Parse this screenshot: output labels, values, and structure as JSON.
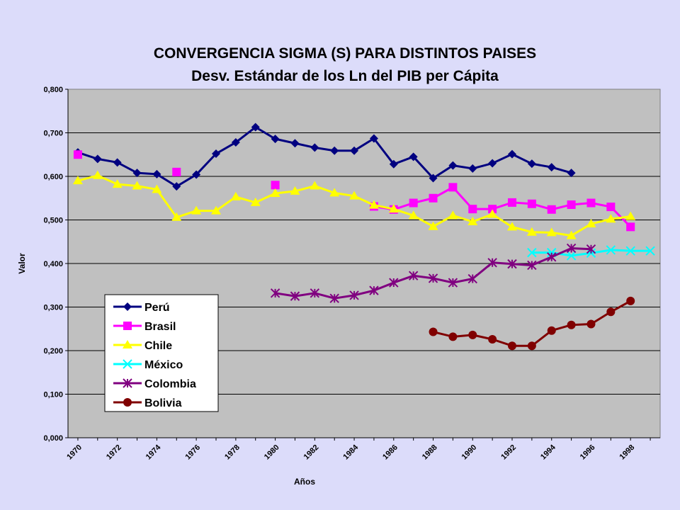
{
  "chart_data": {
    "type": "line",
    "title": "CONVERGENCIA SIGMA (S) PARA DISTINTOS PAISES",
    "subtitle": "Desv. Estándar de los Ln del PIB per Cápita",
    "xlabel": "Años",
    "ylabel": "Valor",
    "xlim": [
      1970,
      1999
    ],
    "ylim": [
      0,
      0.8
    ],
    "x_ticks": [
      "1970",
      "1972",
      "1974",
      "1976",
      "1978",
      "1980",
      "1982",
      "1984",
      "1986",
      "1988",
      "1990",
      "1992",
      "1994",
      "1996",
      "1998"
    ],
    "y_ticks": [
      "0,000",
      "0,100",
      "0,200",
      "0,300",
      "0,400",
      "0,500",
      "0,600",
      "0,700",
      "0,800"
    ],
    "grid": "horizontal",
    "legend_position": "bottom-left",
    "plot_background": "#c0c0c0",
    "series": [
      {
        "name": "Perú",
        "color": "#000080",
        "marker": "diamond",
        "points": [
          [
            1970,
            0.655
          ],
          [
            1971,
            0.64
          ],
          [
            1972,
            0.632
          ],
          [
            1973,
            0.608
          ],
          [
            1974,
            0.605
          ],
          [
            1975,
            0.577
          ],
          [
            1976,
            0.604
          ],
          [
            1977,
            0.652
          ],
          [
            1978,
            0.678
          ],
          [
            1979,
            0.713
          ],
          [
            1980,
            0.686
          ],
          [
            1981,
            0.676
          ],
          [
            1982,
            0.666
          ],
          [
            1983,
            0.659
          ],
          [
            1984,
            0.659
          ],
          [
            1985,
            0.687
          ],
          [
            1986,
            0.628
          ],
          [
            1987,
            0.645
          ],
          [
            1988,
            0.596
          ],
          [
            1989,
            0.625
          ],
          [
            1990,
            0.618
          ],
          [
            1991,
            0.63
          ],
          [
            1992,
            0.651
          ],
          [
            1993,
            0.629
          ],
          [
            1994,
            0.621
          ],
          [
            1995,
            0.608
          ]
        ]
      },
      {
        "name": "Brasil",
        "color": "#ff00ff",
        "marker": "square",
        "points": [
          [
            1970,
            0.65
          ],
          [
            1975,
            0.61
          ],
          [
            1980,
            0.58
          ],
          [
            1985,
            0.531
          ],
          [
            1986,
            0.524
          ],
          [
            1987,
            0.539
          ],
          [
            1988,
            0.55
          ],
          [
            1989,
            0.575
          ],
          [
            1990,
            0.525
          ],
          [
            1991,
            0.525
          ],
          [
            1992,
            0.54
          ],
          [
            1993,
            0.537
          ],
          [
            1994,
            0.524
          ],
          [
            1995,
            0.535
          ],
          [
            1996,
            0.539
          ],
          [
            1997,
            0.53
          ],
          [
            1998,
            0.484
          ]
        ]
      },
      {
        "name": "Chile",
        "color": "#ffff00",
        "marker": "triangle",
        "points": [
          [
            1970,
            0.59
          ],
          [
            1971,
            0.602
          ],
          [
            1972,
            0.582
          ],
          [
            1973,
            0.578
          ],
          [
            1974,
            0.57
          ],
          [
            1975,
            0.506
          ],
          [
            1976,
            0.521
          ],
          [
            1977,
            0.521
          ],
          [
            1978,
            0.553
          ],
          [
            1979,
            0.54
          ],
          [
            1980,
            0.561
          ],
          [
            1981,
            0.566
          ],
          [
            1982,
            0.578
          ],
          [
            1983,
            0.562
          ],
          [
            1984,
            0.555
          ],
          [
            1985,
            0.534
          ],
          [
            1986,
            0.525
          ],
          [
            1987,
            0.51
          ],
          [
            1988,
            0.485
          ],
          [
            1989,
            0.51
          ],
          [
            1990,
            0.496
          ],
          [
            1991,
            0.513
          ],
          [
            1992,
            0.484
          ],
          [
            1993,
            0.472
          ],
          [
            1994,
            0.471
          ],
          [
            1995,
            0.464
          ],
          [
            1996,
            0.491
          ],
          [
            1997,
            0.502
          ],
          [
            1998,
            0.508
          ]
        ]
      },
      {
        "name": "México",
        "color": "#00ffff",
        "marker": "x",
        "points": [
          [
            1993,
            0.425
          ],
          [
            1994,
            0.425
          ],
          [
            1995,
            0.418
          ],
          [
            1996,
            0.424
          ],
          [
            1997,
            0.431
          ],
          [
            1998,
            0.429
          ],
          [
            1999,
            0.429
          ]
        ]
      },
      {
        "name": "Colombia",
        "color": "#800080",
        "marker": "star",
        "points": [
          [
            1980,
            0.332
          ],
          [
            1981,
            0.325
          ],
          [
            1982,
            0.332
          ],
          [
            1983,
            0.32
          ],
          [
            1984,
            0.327
          ],
          [
            1985,
            0.338
          ],
          [
            1986,
            0.356
          ],
          [
            1987,
            0.372
          ],
          [
            1988,
            0.366
          ],
          [
            1989,
            0.356
          ],
          [
            1990,
            0.365
          ],
          [
            1991,
            0.402
          ],
          [
            1992,
            0.399
          ],
          [
            1993,
            0.396
          ],
          [
            1994,
            0.415
          ],
          [
            1995,
            0.435
          ],
          [
            1996,
            0.433
          ]
        ]
      },
      {
        "name": "Bolivia",
        "color": "#800000",
        "marker": "circle",
        "points": [
          [
            1988,
            0.243
          ],
          [
            1989,
            0.232
          ],
          [
            1990,
            0.236
          ],
          [
            1991,
            0.226
          ],
          [
            1992,
            0.211
          ],
          [
            1993,
            0.211
          ],
          [
            1994,
            0.246
          ],
          [
            1995,
            0.259
          ],
          [
            1996,
            0.261
          ],
          [
            1997,
            0.289
          ],
          [
            1998,
            0.314
          ]
        ]
      }
    ]
  }
}
